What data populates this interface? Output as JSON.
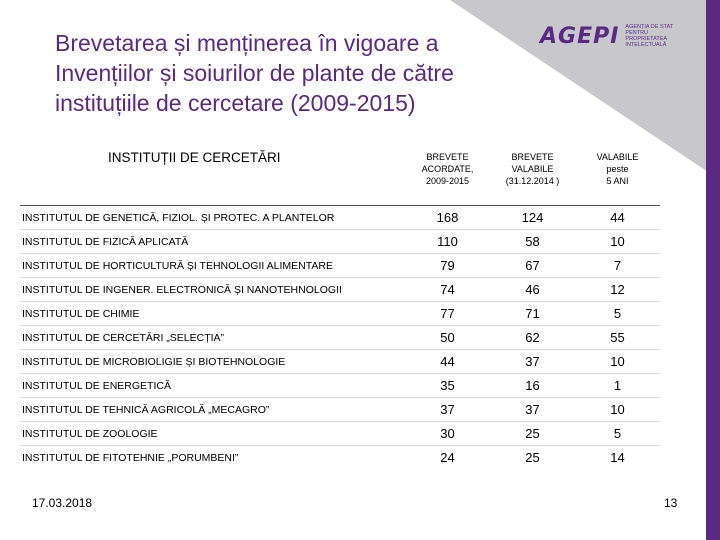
{
  "title": {
    "line1": "Brevetarea și menținerea în vigoare a",
    "line2": "Invențiilor și soiurilor de plante de către",
    "line3": "instituțiile de cercetare (2009-2015)"
  },
  "logo": {
    "wordmark": "AGEPI",
    "tagline": [
      "AGENȚIA DE STAT",
      "PENTRU",
      "PROPRIETATEA",
      "INTELECTUALĂ"
    ],
    "brand_color": "#5a2a82"
  },
  "table": {
    "headers": {
      "institution": "INSTITUȚII DE CERCETĂRI",
      "granted": [
        "BREVETE",
        "ACORDATE,",
        "2009-2015"
      ],
      "valid": [
        "BREVETE",
        "VALABILE",
        "(31.12.2014 )"
      ],
      "valid5": [
        "VALABILE",
        "peste",
        "5 ANI"
      ]
    },
    "rows": [
      {
        "name": "INSTITUTUL DE GENETICĂ, FIZIOL. ȘI PROTEC. A PLANTELOR",
        "granted": "168",
        "valid": "124",
        "valid5": "44"
      },
      {
        "name": "INSTITUTUL DE FIZICĂ APLICATĂ",
        "granted": "110",
        "valid": "58",
        "valid5": "10"
      },
      {
        "name": "INSTITUTUL DE HORTICULTURĂ ȘI TEHNOLOGII ALIMENTARE",
        "granted": "79",
        "valid": "67",
        "valid5": "7"
      },
      {
        "name": "INSTITUTUL DE INGENER. ELECTRONICĂ ȘI NANOTEHNOLOGII",
        "granted": "74",
        "valid": "46",
        "valid5": "12"
      },
      {
        "name": "INSTITUTUL DE CHIMIE",
        "granted": "77",
        "valid": "71",
        "valid5": "5"
      },
      {
        "name": "INSTITUTUL DE CERCETĂRI „SELECȚIA”",
        "granted": "50",
        "valid": "62",
        "valid5": "55"
      },
      {
        "name": "INSTITUTUL DE MICROBIOLIGIE ȘI BIOTEHNOLOGIE",
        "granted": "44",
        "valid": "37",
        "valid5": "10"
      },
      {
        "name": "INSTITUTUL DE ENERGETICĂ",
        "granted": "35",
        "valid": "16",
        "valid5": "1"
      },
      {
        "name": "INSTITUTUL DE TEHNICĂ AGRICOLĂ „MECAGRO”",
        "granted": "37",
        "valid": "37",
        "valid5": "10"
      },
      {
        "name": "INSTITUTUL DE ZOOLOGIE",
        "granted": "30",
        "valid": "25",
        "valid5": "5"
      },
      {
        "name": "INSTITUTUL DE FITOTEHNIE „PORUMBENI”",
        "granted": "24",
        "valid": "25",
        "valid5": "14"
      }
    ]
  },
  "footer": {
    "date": "17.03.2018",
    "page": "13"
  }
}
